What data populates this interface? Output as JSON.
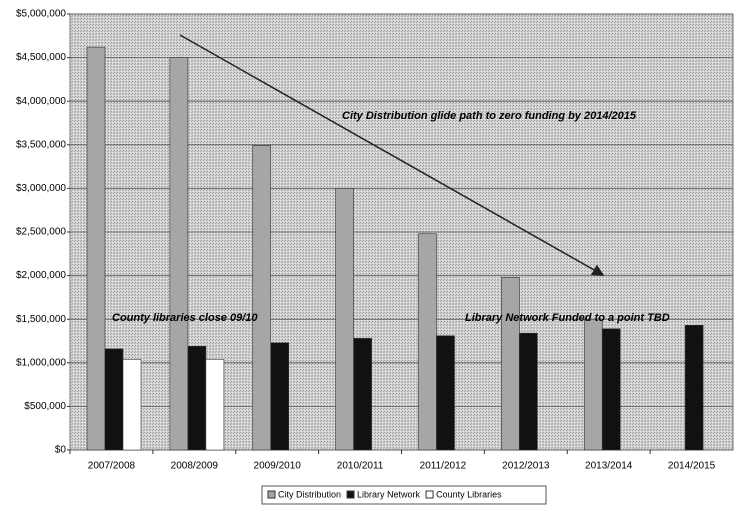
{
  "chart_data": {
    "type": "bar",
    "categories": [
      "2007/2008",
      "2008/2009",
      "2009/2010",
      "2010/2011",
      "2011/2012",
      "2012/2013",
      "2013/2014",
      "2014/2015"
    ],
    "series": [
      {
        "name": "City Distribution",
        "color": "#a6a6a6",
        "values": [
          4620000,
          4500000,
          3490000,
          3000000,
          2480000,
          1980000,
          1500000,
          null
        ]
      },
      {
        "name": "Library Network",
        "color": "#111111",
        "values": [
          1160000,
          1190000,
          1230000,
          1280000,
          1310000,
          1340000,
          1390000,
          1430000
        ]
      },
      {
        "name": "County Libraries",
        "color": "#ffffff",
        "values": [
          1040000,
          1040000,
          null,
          null,
          null,
          null,
          null,
          null
        ]
      }
    ],
    "ylim": [
      0,
      5000000
    ],
    "yticks": [
      {
        "value": 0,
        "label": "$0"
      },
      {
        "value": 500000,
        "label": "$500,000"
      },
      {
        "value": 1000000,
        "label": "$1,000,000"
      },
      {
        "value": 1500000,
        "label": "$1,500,000"
      },
      {
        "value": 2000000,
        "label": "$2,000,000"
      },
      {
        "value": 2500000,
        "label": "$2,500,000"
      },
      {
        "value": 3000000,
        "label": "$3,000,000"
      },
      {
        "value": 3500000,
        "label": "$3,500,000"
      },
      {
        "value": 4000000,
        "label": "$4,000,000"
      },
      {
        "value": 4500000,
        "label": "$4,500,000"
      },
      {
        "value": 5000000,
        "label": "$5,000,000"
      }
    ],
    "grid": true,
    "legend": "bottom",
    "annotations": [
      "City Distribution glide path to zero funding by 2014/2015",
      "County libraries close 09/10",
      "Library Network Funded to a point TBD"
    ]
  }
}
